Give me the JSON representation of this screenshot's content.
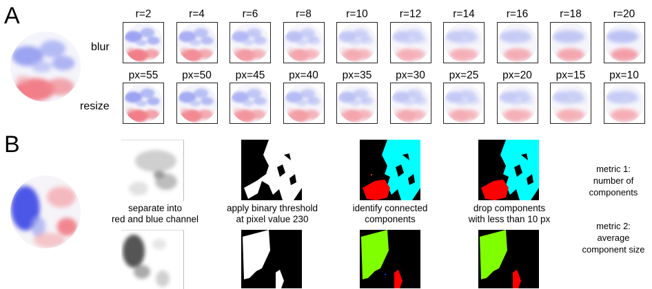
{
  "panel_a": {
    "letter": "A",
    "row_blur_label": "blur",
    "row_resize_label": "resize",
    "blur_params": [
      "r=2",
      "r=4",
      "r=6",
      "r=8",
      "r=10",
      "r=12",
      "r=14",
      "r=16",
      "r=18",
      "r=20"
    ],
    "resize_params": [
      "px=55",
      "px=50",
      "px=45",
      "px=40",
      "px=35",
      "px=30",
      "px=25",
      "px=20",
      "px=15",
      "px=10"
    ]
  },
  "panel_b": {
    "letter": "B",
    "steps": [
      "separate into\nred and blue channel",
      "apply binary threshold\nat pixel value 230",
      "identify connected\ncomponents",
      "drop components\nwith less than 10 px"
    ],
    "metric_1": "metric 1:\nnumber of\ncomponents",
    "metric_2": "metric 2:\naverage\ncomponent size"
  },
  "colors": {
    "blue_map": "#3c46e6",
    "red_map": "#f03c46",
    "cyan_component": "#00ffff",
    "red_component": "#ff0000",
    "green_component": "#80ff00"
  }
}
